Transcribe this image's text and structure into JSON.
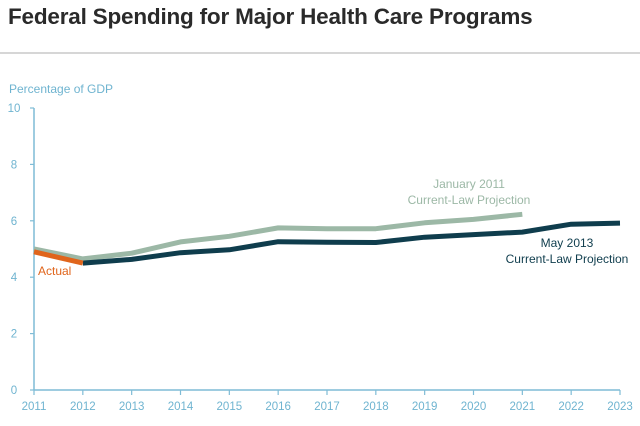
{
  "title": "Federal Spending for Major Health Care Programs",
  "colors": {
    "accent": "#6fb4d0",
    "axis": "#7fbcd6",
    "actual": "#e0651c",
    "jan2011": "#9cb8a6",
    "may2013": "#0f3d4d"
  },
  "chart_data": {
    "type": "line",
    "ylabel": "Percentage of GDP",
    "xlabel": "",
    "ylim": [
      0,
      10
    ],
    "yticks": [
      0,
      2,
      4,
      6,
      8,
      10
    ],
    "xlim": [
      2011,
      2023
    ],
    "xticks": [
      2011,
      2012,
      2013,
      2014,
      2015,
      2016,
      2017,
      2018,
      2019,
      2020,
      2021,
      2022,
      2023
    ],
    "grid": false,
    "series": [
      {
        "name": "Actual",
        "key": "actual",
        "label_lines": [
          "Actual"
        ],
        "x": [
          2011,
          2012
        ],
        "y": [
          4.9,
          4.5
        ]
      },
      {
        "name": "January 2011 Current-Law Projection",
        "key": "jan2011",
        "label_lines": [
          "January 2011",
          "Current-Law Projection"
        ],
        "x": [
          2011,
          2012,
          2013,
          2014,
          2015,
          2016,
          2017,
          2018,
          2019,
          2020,
          2021
        ],
        "y": [
          5.0,
          4.65,
          4.85,
          5.25,
          5.45,
          5.75,
          5.72,
          5.72,
          5.93,
          6.05,
          6.23
        ]
      },
      {
        "name": "May 2013 Current-Law Projection",
        "key": "may2013",
        "label_lines": [
          "May 2013",
          "Current-Law Projection"
        ],
        "x": [
          2012,
          2013,
          2014,
          2015,
          2016,
          2017,
          2018,
          2019,
          2020,
          2021,
          2022,
          2023
        ],
        "y": [
          4.5,
          4.63,
          4.87,
          4.97,
          5.26,
          5.24,
          5.23,
          5.42,
          5.51,
          5.6,
          5.88,
          5.92
        ]
      }
    ]
  }
}
